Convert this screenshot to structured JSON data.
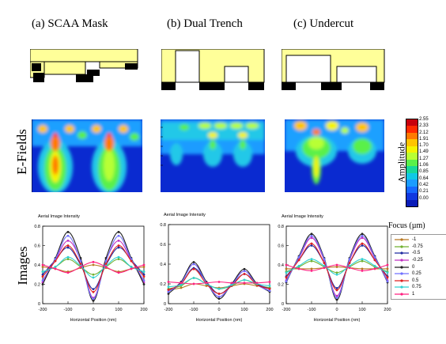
{
  "titles": [
    "(a) SCAA Mask",
    "(b) Dual Trench",
    "(c) Undercut"
  ],
  "row_labels": {
    "efields": "E-Fields",
    "images": "Images"
  },
  "colorbar": {
    "label": "Amplitude",
    "ticks": [
      "2.55",
      "2.33",
      "2.12",
      "1.91",
      "1.70",
      "1.49",
      "1.27",
      "1.06",
      "0.85",
      "0.64",
      "0.42",
      "0.21",
      "0.00"
    ],
    "colors": [
      "#c8000c",
      "#ff2a00",
      "#ff7a00",
      "#ffc400",
      "#f4f400",
      "#b8ff34",
      "#5af04a",
      "#18d89a",
      "#10c8e6",
      "#1a9cff",
      "#1668ff",
      "#1038e0",
      "#0a1cb8"
    ]
  },
  "colors": {
    "mask_fill": "#ffff99",
    "absorber": "#000000"
  },
  "plot_title": "Aerial Image Intensity",
  "xlabel": "Horizontal Position (nm)",
  "legend": {
    "title": "Focus (µm)",
    "entries": [
      "-1",
      "-0.75",
      "-0.5",
      "-0.25",
      "0",
      "0.25",
      "0.5",
      "0.75",
      "1"
    ],
    "colors": [
      "#b87820",
      "#70b030",
      "#1e2aa0",
      "#c030c0",
      "#202020",
      "#7070ff",
      "#e02020",
      "#30d0d0",
      "#ff2080"
    ]
  },
  "chart_data": [
    {
      "type": "line",
      "title": "Aerial Image Intensity",
      "xlabel": "Horizontal Position (nm)",
      "ylabel": "",
      "xlim": [
        -200,
        200
      ],
      "ylim": [
        0,
        0.8
      ],
      "xticks": [
        "-200",
        "-100",
        "0",
        "100",
        "200"
      ],
      "yticks": [
        "0",
        "0.2",
        "0.4",
        "0.6",
        "0.8"
      ],
      "x": [
        -200,
        -150,
        -100,
        -50,
        0,
        50,
        100,
        150,
        200
      ],
      "series": [
        {
          "name": "-1",
          "values": [
            0.38,
            0.36,
            0.33,
            0.37,
            0.4,
            0.37,
            0.33,
            0.36,
            0.38
          ]
        },
        {
          "name": "-0.75",
          "values": [
            0.33,
            0.38,
            0.46,
            0.38,
            0.3,
            0.38,
            0.46,
            0.38,
            0.33
          ]
        },
        {
          "name": "-0.5",
          "values": [
            0.3,
            0.45,
            0.58,
            0.4,
            0.15,
            0.4,
            0.58,
            0.45,
            0.3
          ]
        },
        {
          "name": "-0.25",
          "values": [
            0.22,
            0.45,
            0.65,
            0.45,
            0.06,
            0.45,
            0.65,
            0.45,
            0.22
          ]
        },
        {
          "name": "0",
          "values": [
            0.2,
            0.47,
            0.74,
            0.47,
            0.03,
            0.47,
            0.74,
            0.47,
            0.2
          ]
        },
        {
          "name": "0.25",
          "values": [
            0.24,
            0.46,
            0.7,
            0.44,
            0.05,
            0.44,
            0.7,
            0.46,
            0.24
          ]
        },
        {
          "name": "0.5",
          "values": [
            0.28,
            0.44,
            0.6,
            0.41,
            0.12,
            0.41,
            0.6,
            0.44,
            0.28
          ]
        },
        {
          "name": "0.75",
          "values": [
            0.33,
            0.38,
            0.48,
            0.39,
            0.27,
            0.39,
            0.48,
            0.38,
            0.33
          ]
        },
        {
          "name": "1",
          "values": [
            0.4,
            0.36,
            0.32,
            0.38,
            0.43,
            0.38,
            0.32,
            0.36,
            0.4
          ]
        }
      ]
    },
    {
      "type": "line",
      "title": "Aerial Image Intensity",
      "xlabel": "Horizontal Position (nm)",
      "ylabel": "",
      "xlim": [
        -200,
        200
      ],
      "ylim": [
        0,
        0.8
      ],
      "xticks": [
        "-200",
        "-100",
        "0",
        "100",
        "200"
      ],
      "yticks": [
        "0",
        "0.2",
        "0.4",
        "0.6",
        "0.8"
      ],
      "x": [
        -200,
        -150,
        -100,
        -50,
        0,
        50,
        100,
        150,
        200
      ],
      "series": [
        {
          "name": "-1",
          "values": [
            0.14,
            0.16,
            0.2,
            0.18,
            0.16,
            0.18,
            0.2,
            0.18,
            0.16
          ]
        },
        {
          "name": "-0.75",
          "values": [
            0.15,
            0.18,
            0.26,
            0.2,
            0.15,
            0.18,
            0.24,
            0.19,
            0.16
          ]
        },
        {
          "name": "-0.5",
          "values": [
            0.14,
            0.2,
            0.36,
            0.22,
            0.1,
            0.19,
            0.3,
            0.2,
            0.15
          ]
        },
        {
          "name": "-0.25",
          "values": [
            0.12,
            0.22,
            0.4,
            0.22,
            0.07,
            0.2,
            0.33,
            0.2,
            0.13
          ]
        },
        {
          "name": "0",
          "values": [
            0.1,
            0.22,
            0.42,
            0.22,
            0.05,
            0.2,
            0.35,
            0.2,
            0.12
          ]
        },
        {
          "name": "0.25",
          "values": [
            0.12,
            0.21,
            0.4,
            0.21,
            0.07,
            0.19,
            0.33,
            0.19,
            0.13
          ]
        },
        {
          "name": "0.5",
          "values": [
            0.14,
            0.2,
            0.35,
            0.2,
            0.1,
            0.18,
            0.3,
            0.19,
            0.15
          ]
        },
        {
          "name": "0.75",
          "values": [
            0.17,
            0.19,
            0.26,
            0.2,
            0.15,
            0.19,
            0.24,
            0.2,
            0.18
          ]
        },
        {
          "name": "1",
          "values": [
            0.22,
            0.21,
            0.2,
            0.21,
            0.22,
            0.21,
            0.21,
            0.21,
            0.22
          ]
        }
      ]
    },
    {
      "type": "line",
      "title": "Aerial Image Intensity",
      "xlabel": "Horizontal Position (nm)",
      "ylabel": "",
      "xlim": [
        -200,
        200
      ],
      "ylim": [
        0,
        0.8
      ],
      "xticks": [
        "-200",
        "-100",
        "0",
        "100",
        "200"
      ],
      "yticks": [
        "0",
        "0.2",
        "0.4",
        "0.6",
        "0.8"
      ],
      "x": [
        -200,
        -150,
        -100,
        -50,
        0,
        50,
        100,
        150,
        200
      ],
      "series": [
        {
          "name": "-1",
          "values": [
            0.36,
            0.36,
            0.36,
            0.37,
            0.38,
            0.37,
            0.36,
            0.36,
            0.36
          ]
        },
        {
          "name": "-0.75",
          "values": [
            0.33,
            0.38,
            0.44,
            0.38,
            0.32,
            0.38,
            0.44,
            0.38,
            0.33
          ]
        },
        {
          "name": "-0.5",
          "values": [
            0.28,
            0.45,
            0.6,
            0.42,
            0.16,
            0.42,
            0.6,
            0.45,
            0.28
          ]
        },
        {
          "name": "-0.25",
          "values": [
            0.24,
            0.47,
            0.68,
            0.45,
            0.08,
            0.45,
            0.68,
            0.47,
            0.24
          ]
        },
        {
          "name": "0",
          "values": [
            0.22,
            0.49,
            0.72,
            0.47,
            0.04,
            0.47,
            0.72,
            0.49,
            0.22
          ]
        },
        {
          "name": "0.25",
          "values": [
            0.23,
            0.48,
            0.7,
            0.46,
            0.06,
            0.46,
            0.7,
            0.48,
            0.23
          ]
        },
        {
          "name": "0.5",
          "values": [
            0.27,
            0.45,
            0.62,
            0.42,
            0.14,
            0.42,
            0.62,
            0.45,
            0.27
          ]
        },
        {
          "name": "0.75",
          "values": [
            0.32,
            0.39,
            0.46,
            0.39,
            0.3,
            0.39,
            0.46,
            0.39,
            0.32
          ]
        },
        {
          "name": "1",
          "values": [
            0.4,
            0.36,
            0.34,
            0.37,
            0.4,
            0.37,
            0.34,
            0.36,
            0.4
          ]
        }
      ]
    }
  ]
}
